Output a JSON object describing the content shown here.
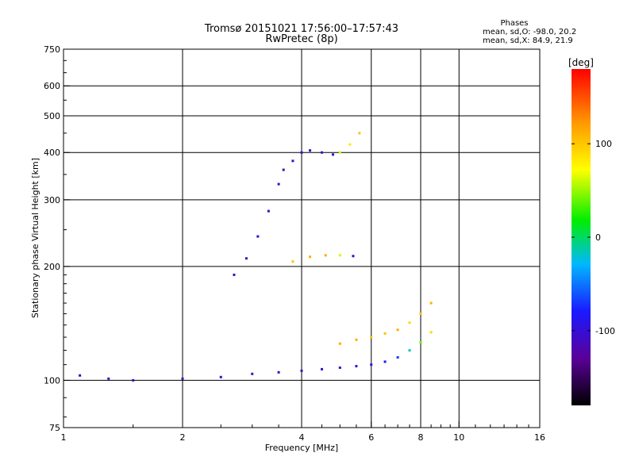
{
  "chart_data": {
    "type": "scatter",
    "title": "Tromsø 20151021 17:56:00–17:57:43",
    "subtitle": "RwPretec (8p)",
    "stats": {
      "heading": "Phases",
      "line1": "mean, sd,O: -98.0, 20.2",
      "line2": "mean, sd,X: 84.9, 21.9"
    },
    "xlabel": "Frequency [MHz]",
    "ylabel": "Stationary phase Virtual Height [km]",
    "xscale": "log",
    "yscale": "log",
    "xlim": [
      1,
      16
    ],
    "ylim": [
      75,
      750
    ],
    "xticks": [
      1,
      2,
      4,
      6,
      8,
      10,
      16
    ],
    "yticks": [
      75,
      100,
      200,
      300,
      400,
      500,
      600,
      750
    ],
    "grid": true,
    "colorbar": {
      "label": "[deg]",
      "range": [
        -180,
        180
      ],
      "ticks": [
        100,
        0,
        -100
      ],
      "colormap": "rainbow (black-purple-blue-cyan-green-yellow-orange-red)"
    },
    "series": [
      {
        "trace": "lower layer trace",
        "x": [
          1.1,
          1.3,
          1.5,
          2.0,
          2.5,
          3.0,
          3.5,
          4.0,
          4.5,
          5.0,
          5.5,
          6.0,
          6.5,
          7.0,
          7.5,
          8.0,
          8.5
        ],
        "y": [
          103,
          101,
          100,
          101,
          102,
          104,
          105,
          106,
          107,
          108,
          109,
          110,
          112,
          115,
          120,
          126,
          134
        ],
        "phase": [
          -110,
          -110,
          -110,
          -110,
          -110,
          -110,
          -110,
          -110,
          -105,
          -100,
          -100,
          -90,
          -90,
          -70,
          -20,
          40,
          90
        ]
      },
      {
        "trace": "upper diffuse cluster",
        "x": [
          2.7,
          2.9,
          3.1,
          3.3,
          3.5,
          3.6,
          3.8,
          4.0,
          4.2,
          4.5,
          4.8,
          5.0,
          5.3,
          5.6
        ],
        "y": [
          190,
          210,
          240,
          280,
          330,
          360,
          380,
          400,
          405,
          400,
          395,
          400,
          420,
          450
        ],
        "phase": [
          -110,
          -110,
          -110,
          -110,
          -110,
          -110,
          -110,
          -110,
          -110,
          -110,
          -100,
          60,
          80,
          100
        ]
      },
      {
        "trace": "second-hop trace",
        "x": [
          5.0,
          5.5,
          6.0,
          6.5,
          7.0,
          7.5,
          8.0,
          8.5
        ],
        "y": [
          125,
          128,
          130,
          133,
          136,
          142,
          150,
          160
        ],
        "phase": [
          110,
          110,
          100,
          100,
          110,
          90,
          100,
          110
        ]
      },
      {
        "trace": "level band",
        "x": [
          3.8,
          4.2,
          4.6,
          5.0,
          5.4
        ],
        "y": [
          206,
          212,
          214,
          214,
          213
        ],
        "phase": [
          100,
          110,
          110,
          60,
          -110
        ]
      }
    ]
  }
}
